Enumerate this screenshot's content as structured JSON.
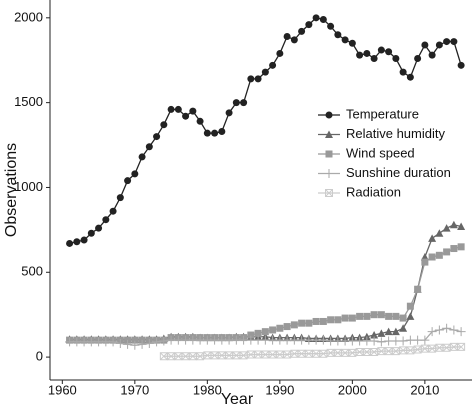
{
  "chart_data": {
    "type": "line",
    "x_label": "Year",
    "y_label": "Observations",
    "x": [
      1961,
      1962,
      1963,
      1964,
      1965,
      1966,
      1967,
      1968,
      1969,
      1970,
      1971,
      1972,
      1973,
      1974,
      1975,
      1976,
      1977,
      1978,
      1979,
      1980,
      1981,
      1982,
      1983,
      1984,
      1985,
      1986,
      1987,
      1988,
      1989,
      1990,
      1991,
      1992,
      1993,
      1994,
      1995,
      1996,
      1997,
      1998,
      1999,
      2000,
      2001,
      2002,
      2003,
      2004,
      2005,
      2006,
      2007,
      2008,
      2009,
      2010,
      2011,
      2012,
      2013,
      2014,
      2015
    ],
    "series": [
      {
        "name": "Temperature",
        "color": "#222222",
        "marker": "circle",
        "values": [
          670,
          680,
          690,
          730,
          760,
          810,
          860,
          940,
          1040,
          1080,
          1180,
          1240,
          1300,
          1370,
          1460,
          1460,
          1420,
          1450,
          1390,
          1320,
          1320,
          1330,
          1440,
          1500,
          1500,
          1640,
          1640,
          1680,
          1720,
          1790,
          1890,
          1870,
          1920,
          1960,
          2000,
          1990,
          1950,
          1900,
          1870,
          1850,
          1780,
          1790,
          1760,
          1810,
          1800,
          1760,
          1680,
          1650,
          1760,
          1840,
          1780,
          1840,
          1860,
          1860,
          1720
        ]
      },
      {
        "name": "Relative humidity",
        "color": "#666666",
        "marker": "triangle",
        "values": [
          105,
          105,
          105,
          105,
          105,
          105,
          105,
          105,
          105,
          105,
          105,
          105,
          105,
          110,
          120,
          120,
          120,
          120,
          115,
          115,
          115,
          115,
          115,
          120,
          120,
          120,
          120,
          120,
          115,
          115,
          115,
          115,
          115,
          110,
          110,
          110,
          110,
          110,
          110,
          115,
          115,
          120,
          130,
          140,
          150,
          150,
          170,
          240,
          400,
          590,
          700,
          730,
          760,
          780,
          770
        ]
      },
      {
        "name": "Wind speed",
        "color": "#999999",
        "marker": "square",
        "values": [
          100,
          100,
          100,
          100,
          100,
          100,
          100,
          100,
          100,
          100,
          100,
          100,
          100,
          100,
          115,
          115,
          115,
          115,
          115,
          115,
          115,
          115,
          115,
          115,
          115,
          130,
          140,
          150,
          160,
          170,
          180,
          190,
          200,
          200,
          210,
          210,
          220,
          220,
          230,
          230,
          240,
          240,
          250,
          250,
          240,
          240,
          230,
          300,
          400,
          560,
          590,
          600,
          620,
          640,
          650
        ]
      },
      {
        "name": "Sunshine duration",
        "color": "#aaaaaa",
        "marker": "plus",
        "values": [
          90,
          90,
          90,
          90,
          90,
          90,
          90,
          80,
          75,
          70,
          75,
          80,
          90,
          95,
          100,
          100,
          100,
          100,
          100,
          100,
          100,
          100,
          100,
          100,
          100,
          100,
          100,
          100,
          100,
          100,
          100,
          100,
          100,
          100,
          100,
          100,
          95,
          95,
          95,
          95,
          95,
          95,
          95,
          90,
          95,
          95,
          95,
          100,
          100,
          100,
          150,
          160,
          170,
          160,
          150
        ]
      },
      {
        "name": "Radiation",
        "color": "#cccccc",
        "marker": "xbox",
        "values": [
          null,
          null,
          null,
          null,
          null,
          null,
          null,
          null,
          null,
          null,
          null,
          null,
          null,
          5,
          5,
          5,
          5,
          5,
          5,
          10,
          10,
          10,
          10,
          10,
          10,
          15,
          15,
          15,
          15,
          15,
          15,
          20,
          20,
          20,
          20,
          20,
          25,
          25,
          25,
          25,
          30,
          30,
          30,
          35,
          35,
          35,
          40,
          40,
          45,
          50,
          50,
          55,
          55,
          60,
          60
        ]
      }
    ],
    "xlim": [
      1958.3,
      2016.5
    ],
    "ylim": [
      -135,
      2105
    ],
    "xticks": [
      1960,
      1970,
      1980,
      1990,
      2000,
      2010
    ],
    "yticks": [
      0,
      500,
      1000,
      1500,
      2000
    ],
    "grid": false,
    "legend": "right"
  }
}
